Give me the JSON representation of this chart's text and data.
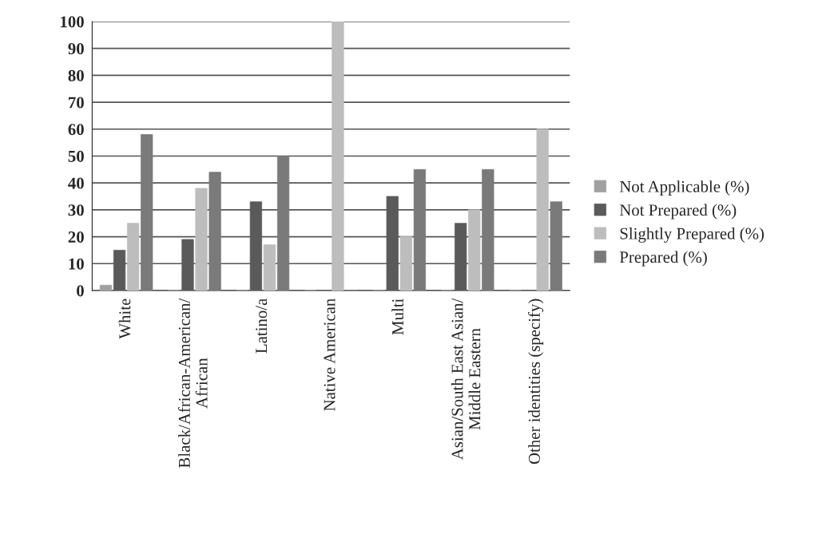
{
  "chart_data": {
    "type": "bar",
    "categories": [
      "White",
      "Black/African-American/\nAfrican",
      "Latino/a",
      "Native American",
      "Multi",
      "Asian/South East Asian/\nMiddle Eastern",
      "Other identities (specify)"
    ],
    "series": [
      {
        "name": "Not Applicable (%)",
        "color": "#a0a0a0",
        "values": [
          2,
          0,
          0,
          0,
          0,
          0,
          0
        ]
      },
      {
        "name": "Not Prepared (%)",
        "color": "#5a5a5a",
        "values": [
          15,
          19,
          33,
          0,
          35,
          25,
          0
        ]
      },
      {
        "name": "Slightly Prepared (%)",
        "color": "#bdbdbd",
        "values": [
          25,
          38,
          17,
          100,
          20,
          30,
          60
        ]
      },
      {
        "name": "Prepared (%)",
        "color": "#7a7a7a",
        "values": [
          58,
          44,
          50,
          0,
          45,
          45,
          33
        ]
      }
    ],
    "ylim": [
      0,
      100
    ],
    "yticks": [
      0,
      10,
      20,
      30,
      40,
      50,
      60,
      70,
      80,
      90,
      100
    ],
    "grid": "y",
    "legend": "right"
  }
}
